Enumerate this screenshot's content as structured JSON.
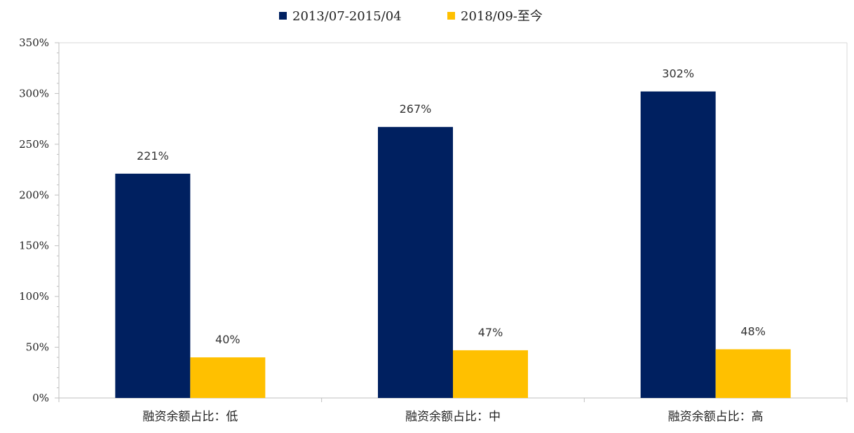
{
  "chart_data": {
    "type": "bar",
    "categories": [
      "融资余额占比：低",
      "融资余额占比：中",
      "融资余额占比：高"
    ],
    "series": [
      {
        "name": "2013/07-2015/04",
        "values": [
          221,
          267,
          302
        ],
        "color": "#002060",
        "labels": [
          "221%",
          "267%",
          "302%"
        ]
      },
      {
        "name": "2018/09-至今",
        "values": [
          40,
          47,
          48
        ],
        "color": "#FFC000",
        "labels": [
          "40%",
          "47%",
          "48%"
        ]
      }
    ],
    "ylim": [
      0,
      350
    ],
    "yticks": [
      0,
      50,
      100,
      150,
      200,
      250,
      300,
      350
    ],
    "ytick_labels": [
      "0%",
      "50%",
      "100%",
      "150%",
      "200%",
      "250%",
      "300%",
      "350%"
    ],
    "grid": false,
    "legend_position": "top-center",
    "title": "",
    "xlabel": "",
    "ylabel": ""
  }
}
